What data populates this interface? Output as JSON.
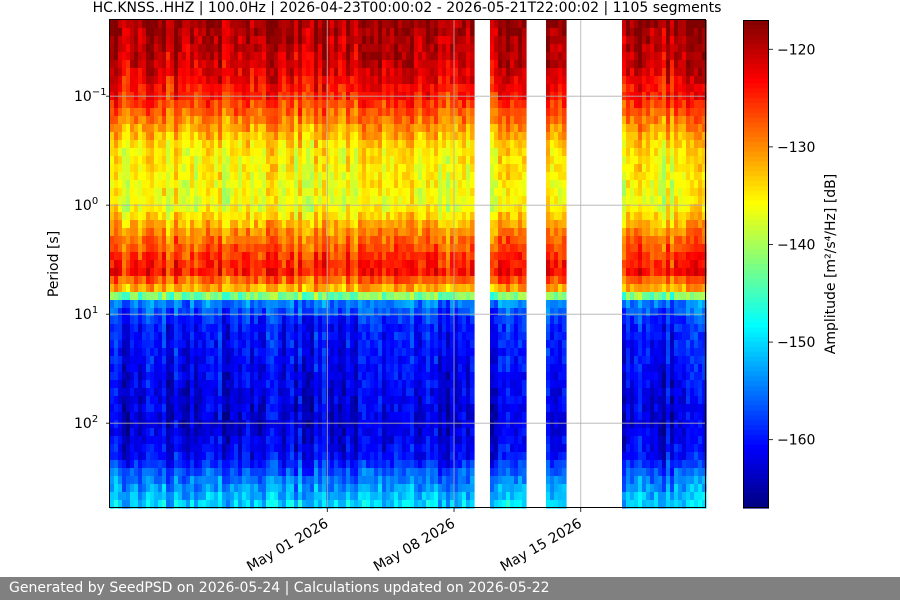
{
  "chart_data": {
    "type": "heatmap",
    "title": "HC.KNSS..HHZ | 100.0Hz | 2026-04-23T00:00:02 - 2026-05-21T22:00:02 | 1105 segments",
    "ylabel": "Period [s]",
    "colorbar_label": "Amplitude [m²/s⁴/Hz] [dB]",
    "x_range": [
      "2026-04-19",
      "2026-05-21T22:00"
    ],
    "x_ticks": [
      {
        "date": "2026-05-01",
        "label": "May 01 2026"
      },
      {
        "date": "2026-05-08",
        "label": "May 08 2026"
      },
      {
        "date": "2026-05-15",
        "label": "May 15 2026"
      }
    ],
    "y_scale": "log",
    "y_inverted": true,
    "y_range_s": [
      0.02,
      600
    ],
    "y_ticks": [
      {
        "value": 0.1,
        "base": "10",
        "exp": "−1"
      },
      {
        "value": 1,
        "base": "10",
        "exp": "0"
      },
      {
        "value": 10,
        "base": "10",
        "exp": "1"
      },
      {
        "value": 100,
        "base": "10",
        "exp": "2"
      }
    ],
    "color_range_db": [
      -167,
      -117
    ],
    "colorbar_ticks": [
      -120,
      -130,
      -140,
      -150,
      -160
    ],
    "colorbar_tick_labels": [
      "−120",
      "−130",
      "−140",
      "−150",
      "−160"
    ],
    "colormap": "jet",
    "grid": true,
    "data_gaps": [
      [
        "2026-05-09T02:00",
        "2026-05-10T02:00"
      ],
      [
        "2026-05-12T00:00",
        "2026-05-13T01:00"
      ],
      [
        "2026-05-14T02:00",
        "2026-05-17T05:00"
      ]
    ],
    "spectrum_profile_by_period_s": [
      {
        "period": 0.02,
        "db": -119
      },
      {
        "period": 0.05,
        "db": -121
      },
      {
        "period": 0.1,
        "db": -125
      },
      {
        "period": 0.3,
        "db": -135
      },
      {
        "period": 1.0,
        "db": -137
      },
      {
        "period": 2.0,
        "db": -129
      },
      {
        "period": 4.0,
        "db": -124
      },
      {
        "period": 6.0,
        "db": -133
      },
      {
        "period": 8.0,
        "db": -155
      },
      {
        "period": 12.0,
        "db": -160
      },
      {
        "period": 100.0,
        "db": -163
      },
      {
        "period": 200.0,
        "db": -161
      },
      {
        "period": 300.0,
        "db": -156
      },
      {
        "period": 600.0,
        "db": -150
      }
    ]
  },
  "footer": {
    "text": "Generated by SeedPSD on 2026-05-24 | Calculations updated on 2026-05-22"
  }
}
